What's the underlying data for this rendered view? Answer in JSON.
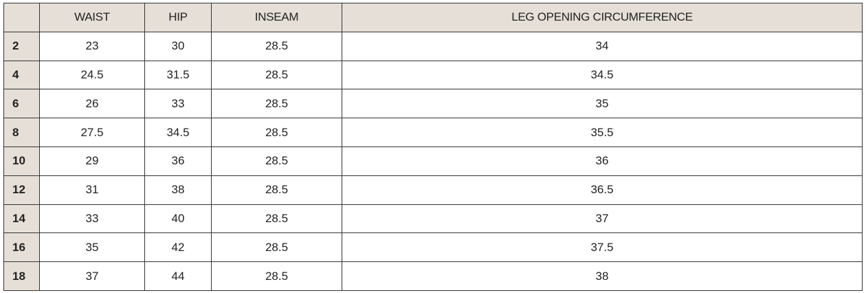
{
  "table": {
    "headers": [
      "",
      "WAIST",
      "HIP",
      "INSEAM",
      "LEG OPENING CIRCUMFERENCE"
    ],
    "rows": [
      {
        "size": "2",
        "waist": "23",
        "hip": "30",
        "inseam": "28.5",
        "leg": "34"
      },
      {
        "size": "4",
        "waist": "24.5",
        "hip": "31.5",
        "inseam": "28.5",
        "leg": "34.5"
      },
      {
        "size": "6",
        "waist": "26",
        "hip": "33",
        "inseam": "28.5",
        "leg": "35"
      },
      {
        "size": "8",
        "waist": "27.5",
        "hip": "34.5",
        "inseam": "28.5",
        "leg": "35.5"
      },
      {
        "size": "10",
        "waist": "29",
        "hip": "36",
        "inseam": "28.5",
        "leg": "36"
      },
      {
        "size": "12",
        "waist": "31",
        "hip": "38",
        "inseam": "28.5",
        "leg": "36.5"
      },
      {
        "size": "14",
        "waist": "33",
        "hip": "40",
        "inseam": "28.5",
        "leg": "37"
      },
      {
        "size": "16",
        "waist": "35",
        "hip": "42",
        "inseam": "28.5",
        "leg": "37.5"
      },
      {
        "size": "18",
        "waist": "37",
        "hip": "44",
        "inseam": "28.5",
        "leg": "38"
      }
    ],
    "header_color": "#e5dfd7"
  }
}
